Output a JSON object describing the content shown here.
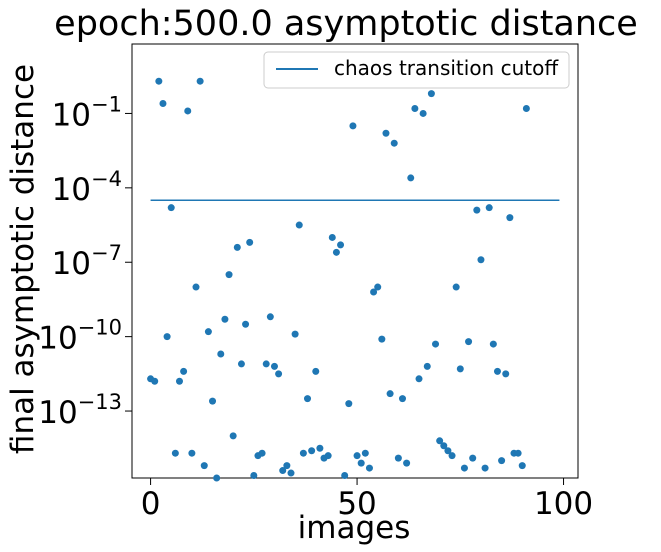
{
  "chart_data": {
    "type": "scatter",
    "title": "epoch:500.0 asymptotic distance",
    "xlabel": "images",
    "ylabel": "final asymptotic distance",
    "xlim": [
      -4.5,
      103.5
    ],
    "ylim_log10": [
      -15.7,
      1.8
    ],
    "yscale": "log",
    "xticks": [
      0,
      50,
      100
    ],
    "yticks": [
      {
        "base": "10",
        "exp": "−13",
        "log10": -13
      },
      {
        "base": "10",
        "exp": "−10",
        "log10": -10
      },
      {
        "base": "10",
        "exp": "−7",
        "log10": -7
      },
      {
        "base": "10",
        "exp": "−4",
        "log10": -4
      },
      {
        "base": "10",
        "exp": "−1",
        "log10": -1
      }
    ],
    "grid": false,
    "legend_position": "top-right",
    "colors": {
      "points": "#1f77b4",
      "line": "#1f77b4"
    },
    "cutoff_line": {
      "name": "chaos transition cutoff",
      "x": [
        0,
        99
      ],
      "log10_y": -4.5
    },
    "points_log10": [
      [
        0,
        -11.7
      ],
      [
        1,
        -11.8
      ],
      [
        2,
        0.3
      ],
      [
        3,
        -0.6
      ],
      [
        4,
        -10.0
      ],
      [
        5,
        -4.8
      ],
      [
        6,
        -14.7
      ],
      [
        7,
        -11.8
      ],
      [
        8,
        -11.4
      ],
      [
        9,
        -0.9
      ],
      [
        10,
        -14.7
      ],
      [
        11,
        -8.0
      ],
      [
        12,
        0.3
      ],
      [
        13,
        -15.2
      ],
      [
        14,
        -9.8
      ],
      [
        15,
        -12.6
      ],
      [
        16,
        -15.7
      ],
      [
        17,
        -10.7
      ],
      [
        18,
        -9.3
      ],
      [
        19,
        -7.5
      ],
      [
        20,
        -14.0
      ],
      [
        21,
        -6.4
      ],
      [
        22,
        -11.1
      ],
      [
        23,
        -9.5
      ],
      [
        24,
        -6.2
      ],
      [
        25,
        -15.6
      ],
      [
        26,
        -14.8
      ],
      [
        27,
        -14.7
      ],
      [
        28,
        -11.1
      ],
      [
        29,
        -9.2
      ],
      [
        30,
        -11.2
      ],
      [
        31,
        -11.5
      ],
      [
        32,
        -15.4
      ],
      [
        33,
        -15.2
      ],
      [
        34,
        -15.5
      ],
      [
        35,
        -9.9
      ],
      [
        36,
        -5.5
      ],
      [
        37,
        -14.7
      ],
      [
        38,
        -12.5
      ],
      [
        39,
        -14.6
      ],
      [
        40,
        -11.4
      ],
      [
        41,
        -14.5
      ],
      [
        42,
        -14.9
      ],
      [
        43,
        -14.8
      ],
      [
        44,
        -6.0
      ],
      [
        45,
        -6.6
      ],
      [
        46,
        -6.3
      ],
      [
        47,
        -15.6
      ],
      [
        48,
        -12.7
      ],
      [
        49,
        -1.5
      ],
      [
        50,
        -14.8
      ],
      [
        51,
        -15.1
      ],
      [
        52,
        -14.7
      ],
      [
        53,
        -15.3
      ],
      [
        54,
        -8.2
      ],
      [
        55,
        -8.0
      ],
      [
        56,
        -10.1
      ],
      [
        57,
        -1.8
      ],
      [
        58,
        -12.3
      ],
      [
        59,
        -2.2
      ],
      [
        60,
        -14.9
      ],
      [
        61,
        -12.5
      ],
      [
        62,
        -15.1
      ],
      [
        63,
        -3.6
      ],
      [
        64,
        -0.8
      ],
      [
        65,
        -11.7
      ],
      [
        66,
        -1.0
      ],
      [
        67,
        -11.2
      ],
      [
        68,
        -0.2
      ],
      [
        69,
        -10.3
      ],
      [
        70,
        -14.2
      ],
      [
        71,
        -14.4
      ],
      [
        72,
        -14.6
      ],
      [
        73,
        -14.8
      ],
      [
        74,
        -8.0
      ],
      [
        75,
        -11.3
      ],
      [
        76,
        -15.3
      ],
      [
        77,
        -10.2
      ],
      [
        78,
        -14.9
      ],
      [
        79,
        -4.9
      ],
      [
        80,
        -6.9
      ],
      [
        81,
        -15.3
      ],
      [
        82,
        -4.8
      ],
      [
        83,
        -10.3
      ],
      [
        84,
        -11.4
      ],
      [
        85,
        -15.0
      ],
      [
        86,
        -11.5
      ],
      [
        87,
        -5.2
      ],
      [
        88,
        -14.7
      ],
      [
        89,
        -14.7
      ],
      [
        90,
        -15.2
      ],
      [
        91,
        -0.8
      ]
    ]
  }
}
